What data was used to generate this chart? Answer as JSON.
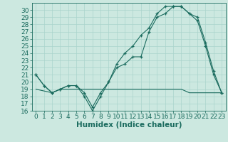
{
  "xlabel": "Humidex (Indice chaleur)",
  "background_color": "#cce8e0",
  "line_color": "#1a6b5e",
  "xlim": [
    -0.5,
    23.5
  ],
  "ylim": [
    16,
    31
  ],
  "yticks": [
    16,
    17,
    18,
    19,
    20,
    21,
    22,
    23,
    24,
    25,
    26,
    27,
    28,
    29,
    30
  ],
  "xticks": [
    0,
    1,
    2,
    3,
    4,
    5,
    6,
    7,
    8,
    9,
    10,
    11,
    12,
    13,
    14,
    15,
    16,
    17,
    18,
    19,
    20,
    21,
    22,
    23
  ],
  "curve1_x": [
    0,
    1,
    2,
    3,
    4,
    5,
    6,
    7,
    8,
    9,
    10,
    11,
    12,
    13,
    14,
    15,
    16,
    17,
    18,
    19,
    20,
    21,
    22,
    23
  ],
  "curve1_y": [
    21.0,
    19.5,
    18.5,
    19.0,
    19.5,
    19.5,
    18.0,
    16.0,
    18.0,
    20.0,
    22.0,
    22.5,
    23.5,
    23.5,
    27.0,
    29.0,
    29.5,
    30.5,
    30.5,
    29.5,
    29.0,
    25.5,
    21.5,
    18.5
  ],
  "curve2_x": [
    0,
    1,
    2,
    3,
    4,
    5,
    6,
    7,
    8,
    9,
    10,
    11,
    12,
    13,
    14,
    15,
    16,
    17,
    18,
    19,
    20,
    21,
    22,
    23
  ],
  "curve2_y": [
    21.0,
    19.5,
    18.5,
    19.0,
    19.5,
    19.5,
    18.5,
    16.5,
    18.5,
    20.0,
    22.5,
    24.0,
    25.0,
    26.5,
    27.5,
    29.5,
    30.5,
    30.5,
    30.5,
    29.5,
    28.5,
    25.0,
    21.0,
    18.5
  ],
  "curve3_x": [
    0,
    2,
    3,
    4,
    5,
    6,
    7,
    8,
    9,
    10,
    11,
    12,
    13,
    14,
    15,
    16,
    17,
    18,
    19,
    20,
    21,
    22,
    23
  ],
  "curve3_y": [
    19.0,
    18.5,
    19.0,
    19.0,
    19.0,
    19.0,
    19.0,
    19.0,
    19.0,
    19.0,
    19.0,
    19.0,
    19.0,
    19.0,
    19.0,
    19.0,
    19.0,
    19.0,
    18.5,
    18.5,
    18.5,
    18.5,
    18.5
  ],
  "grid_color": "#aad4cc",
  "font_size": 6.5
}
